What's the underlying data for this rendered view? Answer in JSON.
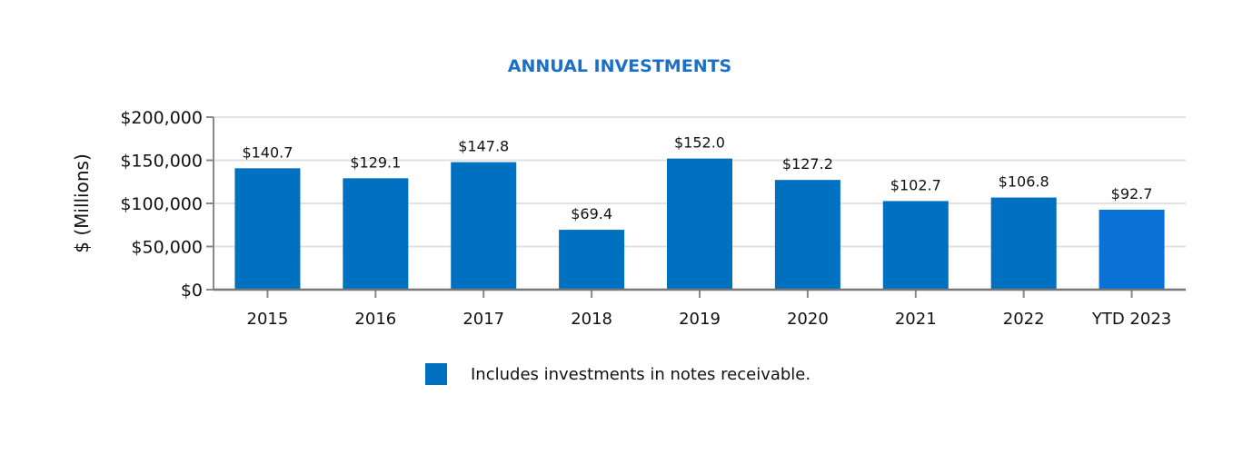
{
  "chart_data": {
    "type": "bar",
    "title": "ANNUAL INVESTMENTS",
    "xlabel": "",
    "ylabel": "$ (Millions)",
    "ylim": [
      0,
      200000
    ],
    "yticks": [
      0,
      50000,
      100000,
      150000,
      200000
    ],
    "ytick_labels": [
      "$0",
      "$50,000",
      "$100,000",
      "$150,000",
      "$200,000"
    ],
    "grid": true,
    "categories": [
      "2015",
      "2016",
      "2017",
      "2018",
      "2019",
      "2020",
      "2021",
      "2022",
      "YTD 2023"
    ],
    "values": [
      140700,
      129100,
      147800,
      69400,
      152000,
      127200,
      102700,
      106800,
      92700
    ],
    "data_labels": [
      "$140.7",
      "$129.1",
      "$147.8",
      "$69.4",
      "$152.0",
      "$127.2",
      "$102.7",
      "$106.8",
      "$92.7"
    ],
    "bar_colors": [
      "#0070c0",
      "#0070c0",
      "#0070c0",
      "#0070c0",
      "#0070c0",
      "#0070c0",
      "#0070c0",
      "#0070c0",
      "#0a72d6"
    ],
    "legend": {
      "label": "Includes investments in notes receivable.",
      "color": "#0070c0",
      "placement": "bottom"
    }
  }
}
